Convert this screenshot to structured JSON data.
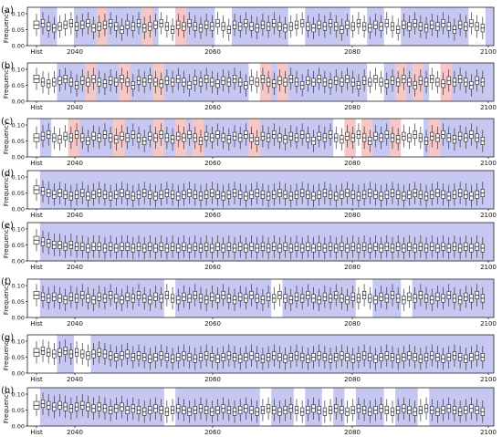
{
  "figure": {
    "panel_letters": [
      "(a)",
      "(b)",
      "(c)",
      "(d)",
      "(e)",
      "(f)",
      "(g)",
      "(h)"
    ],
    "ylabel": "Frequency",
    "y_ticks": [
      "0.00",
      "0.05",
      "0.10"
    ],
    "x_ticks": [
      "Hist",
      "2040",
      "2060",
      "2080",
      "2100"
    ],
    "colors": {
      "blue_bg": "#c6c8f2",
      "red_bg": "#f5c7c7",
      "box_edge": "#1a1a1a"
    }
  },
  "chart_data": [
    {
      "type": "box",
      "panel": "(a)",
      "ylabel": "Frequency",
      "ylim": [
        0,
        0.12
      ],
      "x_tick_labels": [
        "Hist",
        "2040",
        "2060",
        "2080",
        "2100"
      ],
      "median_frequency_by_year": [
        0.065,
        0.07,
        0.06,
        0.055,
        0.06,
        0.065,
        0.07,
        0.06,
        0.065,
        0.07,
        0.055,
        0.06,
        0.065,
        0.07,
        0.06,
        0.05,
        0.065,
        0.06,
        0.07,
        0.055,
        0.06,
        0.065,
        0.07,
        0.06,
        0.05,
        0.065,
        0.06,
        0.07,
        0.06,
        0.055,
        0.065,
        0.06,
        0.07,
        0.06,
        0.05,
        0.065,
        0.06,
        0.07,
        0.06,
        0.055,
        0.065,
        0.06,
        0.07,
        0.06,
        0.055,
        0.06,
        0.065,
        0.07,
        0.06,
        0.055,
        0.065,
        0.06,
        0.07,
        0.06,
        0.05,
        0.065,
        0.06,
        0.07,
        0.06,
        0.055,
        0.065,
        0.06,
        0.07,
        0.06,
        0.05,
        0.065,
        0.06,
        0.07,
        0.06,
        0.055,
        0.065,
        0.06,
        0.07,
        0.06,
        0.05,
        0.065,
        0.06,
        0.07,
        0.06,
        0.055
      ]
    },
    {
      "type": "box",
      "panel": "(b)",
      "ylabel": "Frequency",
      "ylim": [
        0,
        0.12
      ],
      "x_tick_labels": [
        "Hist",
        "2040",
        "2060",
        "2080",
        "2100"
      ],
      "median_frequency_by_year": [
        0.07,
        0.06,
        0.055,
        0.06,
        0.065,
        0.07,
        0.06,
        0.05,
        0.065,
        0.06,
        0.07,
        0.06,
        0.055,
        0.065,
        0.06,
        0.07,
        0.06,
        0.05,
        0.065,
        0.06,
        0.07,
        0.06,
        0.055,
        0.065,
        0.06,
        0.07,
        0.06,
        0.05,
        0.065,
        0.06,
        0.07,
        0.06,
        0.055,
        0.065,
        0.06,
        0.07,
        0.06,
        0.05,
        0.065,
        0.06,
        0.07,
        0.06,
        0.055,
        0.065,
        0.06,
        0.07,
        0.06,
        0.05,
        0.065,
        0.06,
        0.07,
        0.06,
        0.055,
        0.065,
        0.06,
        0.07,
        0.06,
        0.05,
        0.065,
        0.06,
        0.07,
        0.06,
        0.055,
        0.065,
        0.06,
        0.07,
        0.06,
        0.05,
        0.065,
        0.06,
        0.07,
        0.06,
        0.055,
        0.065,
        0.06,
        0.07,
        0.06,
        0.05,
        0.065,
        0.06
      ]
    },
    {
      "type": "box",
      "panel": "(c)",
      "ylabel": "Frequency",
      "ylim": [
        0,
        0.12
      ],
      "x_tick_labels": [
        "Hist",
        "2040",
        "2060",
        "2080",
        "2100"
      ],
      "median_frequency_by_year": [
        0.06,
        0.065,
        0.07,
        0.06,
        0.055,
        0.065,
        0.06,
        0.07,
        0.06,
        0.05,
        0.065,
        0.06,
        0.07,
        0.06,
        0.055,
        0.065,
        0.06,
        0.07,
        0.06,
        0.05,
        0.065,
        0.06,
        0.07,
        0.06,
        0.055,
        0.065,
        0.06,
        0.07,
        0.06,
        0.05,
        0.065,
        0.06,
        0.07,
        0.06,
        0.055,
        0.065,
        0.06,
        0.07,
        0.06,
        0.05,
        0.065,
        0.06,
        0.07,
        0.06,
        0.055,
        0.065,
        0.06,
        0.07,
        0.06,
        0.05,
        0.065,
        0.06,
        0.07,
        0.06,
        0.055,
        0.065,
        0.06,
        0.07,
        0.06,
        0.05,
        0.065,
        0.06,
        0.07,
        0.06,
        0.055,
        0.065,
        0.06,
        0.07,
        0.06,
        0.05,
        0.065,
        0.06,
        0.07,
        0.06,
        0.055,
        0.065,
        0.06,
        0.07,
        0.06,
        0.05
      ]
    },
    {
      "type": "box",
      "panel": "(d)",
      "ylabel": "Frequency",
      "ylim": [
        0,
        0.12
      ],
      "x_tick_labels": [
        "Hist",
        "2040",
        "2060",
        "2080",
        "2100"
      ],
      "median_frequency_by_year": [
        0.06,
        0.055,
        0.05,
        0.045,
        0.05,
        0.045,
        0.04,
        0.045,
        0.05,
        0.04,
        0.045,
        0.05,
        0.045,
        0.04,
        0.045,
        0.05,
        0.045,
        0.04,
        0.045,
        0.05,
        0.045,
        0.04,
        0.045,
        0.05,
        0.045,
        0.04,
        0.045,
        0.05,
        0.045,
        0.04,
        0.045,
        0.05,
        0.045,
        0.04,
        0.045,
        0.05,
        0.045,
        0.04,
        0.045,
        0.05,
        0.045,
        0.04,
        0.045,
        0.05,
        0.045,
        0.04,
        0.045,
        0.05,
        0.045,
        0.04,
        0.045,
        0.05,
        0.045,
        0.04,
        0.045,
        0.05,
        0.045,
        0.04,
        0.045,
        0.05,
        0.045,
        0.04,
        0.045,
        0.05,
        0.045,
        0.04,
        0.045,
        0.05,
        0.045,
        0.04,
        0.045,
        0.05,
        0.045,
        0.04,
        0.045,
        0.05,
        0.045,
        0.04,
        0.045,
        0.05
      ]
    },
    {
      "type": "box",
      "panel": "(e)",
      "ylabel": "Frequency",
      "ylim": [
        0,
        0.12
      ],
      "x_tick_labels": [
        "Hist",
        "2040",
        "2060",
        "2080",
        "2100"
      ],
      "median_frequency_by_year": [
        0.065,
        0.06,
        0.055,
        0.05,
        0.05,
        0.045,
        0.05,
        0.045,
        0.045,
        0.04,
        0.045,
        0.045,
        0.04,
        0.045,
        0.04,
        0.045,
        0.045,
        0.04,
        0.045,
        0.04,
        0.045,
        0.04,
        0.045,
        0.04,
        0.045,
        0.04,
        0.045,
        0.04,
        0.045,
        0.04,
        0.045,
        0.04,
        0.045,
        0.04,
        0.045,
        0.04,
        0.045,
        0.04,
        0.045,
        0.04,
        0.045,
        0.04,
        0.045,
        0.04,
        0.045,
        0.04,
        0.045,
        0.04,
        0.045,
        0.04,
        0.045,
        0.04,
        0.045,
        0.04,
        0.045,
        0.04,
        0.045,
        0.04,
        0.045,
        0.04,
        0.045,
        0.04,
        0.045,
        0.04,
        0.045,
        0.04,
        0.045,
        0.04,
        0.045,
        0.04,
        0.045,
        0.04,
        0.045,
        0.04,
        0.045,
        0.04,
        0.045,
        0.04,
        0.045,
        0.04
      ]
    },
    {
      "type": "box",
      "panel": "(f)",
      "ylabel": "Frequency",
      "ylim": [
        0,
        0.12
      ],
      "x_tick_labels": [
        "Hist",
        "2040",
        "2060",
        "2080",
        "2100"
      ],
      "median_frequency_by_year": [
        0.07,
        0.065,
        0.06,
        0.065,
        0.06,
        0.055,
        0.065,
        0.06,
        0.07,
        0.06,
        0.055,
        0.065,
        0.06,
        0.07,
        0.06,
        0.055,
        0.065,
        0.06,
        0.07,
        0.06,
        0.055,
        0.065,
        0.06,
        0.07,
        0.06,
        0.055,
        0.065,
        0.06,
        0.07,
        0.06,
        0.055,
        0.065,
        0.06,
        0.07,
        0.06,
        0.055,
        0.065,
        0.06,
        0.07,
        0.06,
        0.055,
        0.065,
        0.06,
        0.07,
        0.06,
        0.055,
        0.065,
        0.06,
        0.07,
        0.06,
        0.055,
        0.065,
        0.06,
        0.07,
        0.06,
        0.055,
        0.065,
        0.06,
        0.07,
        0.06,
        0.055,
        0.065,
        0.06,
        0.07,
        0.06,
        0.055,
        0.065,
        0.06,
        0.07,
        0.06,
        0.055,
        0.065,
        0.06,
        0.07,
        0.06,
        0.055,
        0.065,
        0.06,
        0.07,
        0.06
      ]
    },
    {
      "type": "box",
      "panel": "(g)",
      "ylabel": "Frequency",
      "ylim": [
        0,
        0.12
      ],
      "x_tick_labels": [
        "Hist",
        "2040",
        "2060",
        "2080",
        "2100"
      ],
      "median_frequency_by_year": [
        0.065,
        0.07,
        0.065,
        0.06,
        0.065,
        0.07,
        0.06,
        0.065,
        0.06,
        0.055,
        0.06,
        0.065,
        0.06,
        0.055,
        0.05,
        0.055,
        0.06,
        0.05,
        0.055,
        0.05,
        0.045,
        0.05,
        0.055,
        0.05,
        0.045,
        0.05,
        0.055,
        0.05,
        0.045,
        0.05,
        0.055,
        0.05,
        0.045,
        0.05,
        0.055,
        0.05,
        0.045,
        0.05,
        0.055,
        0.05,
        0.045,
        0.05,
        0.055,
        0.05,
        0.045,
        0.05,
        0.055,
        0.05,
        0.045,
        0.05,
        0.055,
        0.05,
        0.045,
        0.05,
        0.055,
        0.05,
        0.045,
        0.05,
        0.055,
        0.05,
        0.045,
        0.05,
        0.055,
        0.05,
        0.045,
        0.05,
        0.055,
        0.05,
        0.045,
        0.05,
        0.055,
        0.05,
        0.045,
        0.05,
        0.055,
        0.05,
        0.045,
        0.05,
        0.055,
        0.05
      ]
    },
    {
      "type": "box",
      "panel": "(h)",
      "ylabel": "Frequency",
      "ylim": [
        0,
        0.12
      ],
      "x_tick_labels": [
        "Hist",
        "2040",
        "2060",
        "2080",
        "2100"
      ],
      "median_frequency_by_year": [
        0.065,
        0.07,
        0.065,
        0.06,
        0.065,
        0.06,
        0.055,
        0.06,
        0.065,
        0.06,
        0.055,
        0.06,
        0.055,
        0.05,
        0.055,
        0.06,
        0.05,
        0.055,
        0.05,
        0.045,
        0.05,
        0.055,
        0.05,
        0.045,
        0.05,
        0.055,
        0.05,
        0.045,
        0.05,
        0.055,
        0.05,
        0.045,
        0.05,
        0.055,
        0.05,
        0.045,
        0.05,
        0.055,
        0.05,
        0.045,
        0.05,
        0.055,
        0.05,
        0.045,
        0.05,
        0.055,
        0.05,
        0.045,
        0.05,
        0.055,
        0.05,
        0.045,
        0.05,
        0.055,
        0.05,
        0.045,
        0.05,
        0.055,
        0.05,
        0.045,
        0.05,
        0.055,
        0.05,
        0.045,
        0.05,
        0.055,
        0.05,
        0.045,
        0.05,
        0.055,
        0.05,
        0.045,
        0.05,
        0.055,
        0.05,
        0.045,
        0.05,
        0.055,
        0.05,
        0.045
      ]
    }
  ]
}
